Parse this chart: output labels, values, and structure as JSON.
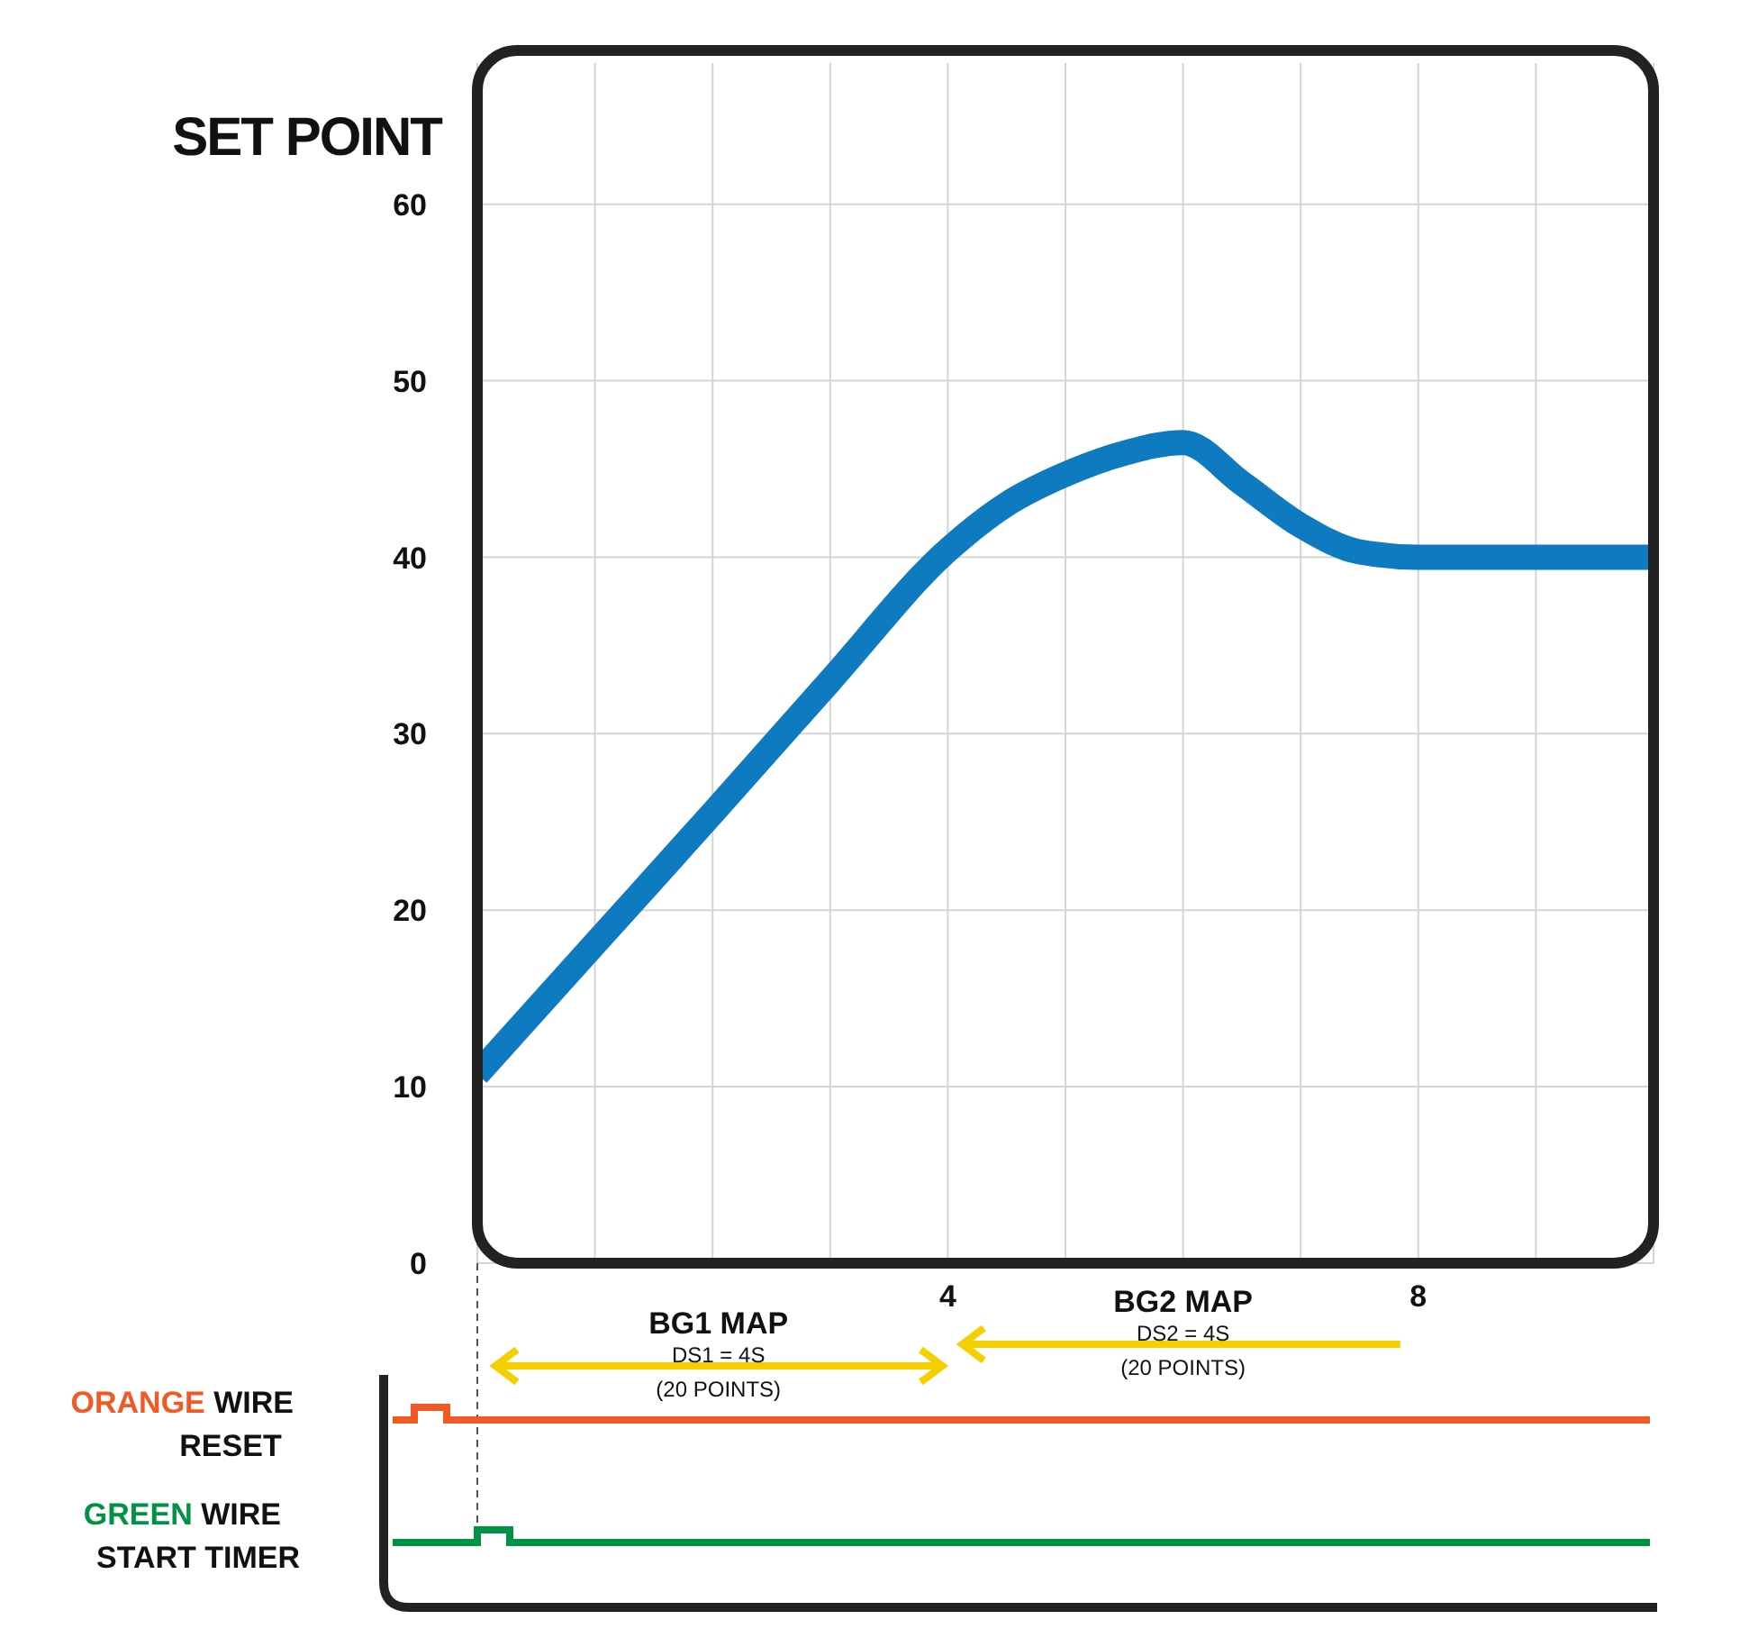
{
  "chart_data": {
    "type": "line",
    "ylabel": "SET POINT",
    "x": [
      0,
      1,
      2,
      3,
      4,
      4.5,
      5,
      5.5,
      6,
      6.5,
      7,
      7.5,
      8,
      9,
      10
    ],
    "series": [
      {
        "color": "#0e7bc0",
        "values": [
          10.7,
          18.1,
          25.5,
          33,
          40.4,
          43,
          44.7,
          45.9,
          46.5,
          44.2,
          41.8,
          40.3,
          40,
          40,
          40
        ]
      }
    ],
    "xlim": [
      0,
      10
    ],
    "xticks": [
      {
        "value": 0,
        "label": null
      },
      {
        "value": 1,
        "label": null
      },
      {
        "value": 2,
        "label": null
      },
      {
        "value": 3,
        "label": null
      },
      4,
      {
        "value": 5,
        "label": null
      },
      {
        "value": 6,
        "label": null
      },
      {
        "value": 7,
        "label": null
      },
      8,
      {
        "value": 9,
        "label": null
      },
      {
        "value": 10,
        "label": null
      }
    ],
    "ylim": [
      0,
      68
    ],
    "yticks": [
      0,
      10,
      20,
      30,
      40,
      50,
      60
    ],
    "grid": true,
    "marker": "none",
    "line_style": "solid",
    "annotations": [
      "BG1 MAP",
      "DS1 = 4S",
      "(20 POINTS)",
      "BG2 MAP",
      "DS2 = 4S",
      "(20 POINTS)",
      "ORANGE WIRE",
      "RESET",
      "GREEN WIRE",
      "START TIMER"
    ]
  }
}
